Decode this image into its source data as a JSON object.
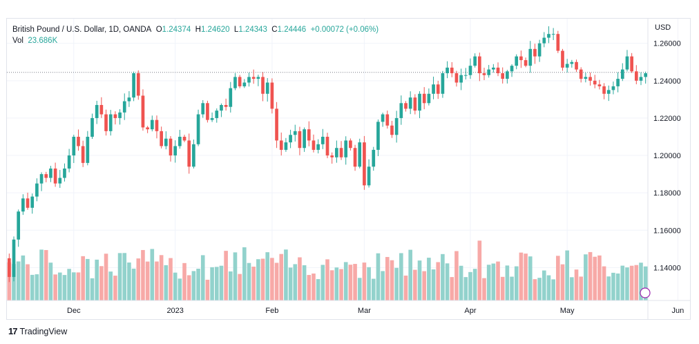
{
  "legend": {
    "symbol": "British Pound / U.S. Dollar, 1D, OANDA",
    "o_label": "O",
    "o_value": "1.24374",
    "h_label": "H",
    "h_value": "1.24620",
    "l_label": "L",
    "l_value": "1.24343",
    "c_label": "C",
    "c_value": "1.24446",
    "change": "+0.00072 (+0.06%)",
    "vol_label": "Vol",
    "vol_value": "23.686K"
  },
  "currency_label": "USD",
  "brand": {
    "logo": "17",
    "name": "TradingView"
  },
  "colors": {
    "up": "#26a69a",
    "down": "#ef5350",
    "up_volume": "#92d2cc",
    "down_volume": "#f7a9a7",
    "grid": "#f0f3fa",
    "last_price_line": "#787b86"
  },
  "chart_data": {
    "type": "candlestick",
    "title": "British Pound / U.S. Dollar, 1D, OANDA",
    "ylabel": "USD",
    "ylim": [
      1.1224,
      1.2732
    ],
    "y_ticks": [
      1.14,
      1.16,
      1.18,
      1.2,
      1.22,
      1.24,
      1.26
    ],
    "y_tick_labels": [
      "1.14000",
      "1.16000",
      "1.18000",
      "1.20000",
      "1.22000",
      "1.24000",
      "1.26000"
    ],
    "x_tick_labels": [
      {
        "label": "Dec",
        "index": 14
      },
      {
        "label": "2023",
        "index": 36
      },
      {
        "label": "Feb",
        "index": 57
      },
      {
        "label": "Mar",
        "index": 77
      },
      {
        "label": "Apr",
        "index": 100
      },
      {
        "label": "May",
        "index": 121
      },
      {
        "label": "Jun",
        "index": 145
      }
    ],
    "last_close": 1.24446,
    "close": [
      1.135,
      1.155,
      1.17,
      1.177,
      1.172,
      1.178,
      1.185,
      1.19,
      1.188,
      1.193,
      1.185,
      1.188,
      1.193,
      1.2,
      1.21,
      1.205,
      1.196,
      1.21,
      1.22,
      1.227,
      1.222,
      1.213,
      1.222,
      1.22,
      1.223,
      1.229,
      1.231,
      1.244,
      1.232,
      1.215,
      1.214,
      1.219,
      1.213,
      1.205,
      1.209,
      1.2,
      1.205,
      1.21,
      1.208,
      1.194,
      1.206,
      1.222,
      1.228,
      1.219,
      1.22,
      1.224,
      1.227,
      1.226,
      1.236,
      1.242,
      1.237,
      1.239,
      1.242,
      1.241,
      1.242,
      1.233,
      1.239,
      1.225,
      1.208,
      1.203,
      1.207,
      1.211,
      1.213,
      1.204,
      1.214,
      1.208,
      1.203,
      1.206,
      1.21,
      1.2,
      1.199,
      1.204,
      1.199,
      1.208,
      1.204,
      1.194,
      1.207,
      1.184,
      1.194,
      1.203,
      1.218,
      1.222,
      1.216,
      1.211,
      1.22,
      1.228,
      1.225,
      1.231,
      1.224,
      1.233,
      1.228,
      1.233,
      1.238,
      1.233,
      1.244,
      1.247,
      1.244,
      1.239,
      1.243,
      1.243,
      1.248,
      1.253,
      1.244,
      1.243,
      1.246,
      1.247,
      1.244,
      1.241,
      1.245,
      1.248,
      1.253,
      1.251,
      1.248,
      1.257,
      1.253,
      1.26,
      1.263,
      1.265,
      1.265,
      1.256,
      1.247,
      1.249,
      1.25,
      1.246,
      1.241,
      1.242,
      1.24,
      1.238,
      1.237,
      1.233,
      1.235,
      1.237,
      1.241,
      1.246,
      1.253,
      1.245,
      1.24,
      1.242,
      1.244
    ]
  }
}
